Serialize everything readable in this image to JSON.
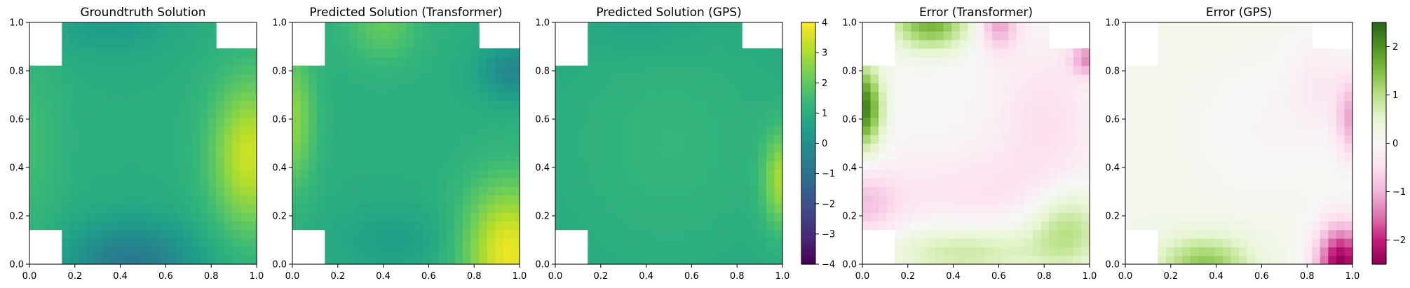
{
  "chart_data": [
    {
      "type": "heatmap",
      "title": "Groundtruth Solution",
      "xlabel": "",
      "ylabel": "",
      "xlim": [
        0.0,
        1.0
      ],
      "ylim": [
        0.0,
        1.0
      ],
      "xticks": [
        "0.0",
        "0.2",
        "0.4",
        "0.6",
        "0.8",
        "1.0"
      ],
      "yticks": [
        "0.0",
        "0.2",
        "0.4",
        "0.6",
        "0.8",
        "1.0"
      ],
      "colormap": "viridis",
      "clim": [
        -4,
        4
      ],
      "field": {
        "base": 1.0,
        "bumps": [
          {
            "x": 0.97,
            "y": 0.45,
            "amp": 2.4,
            "sx": 0.12,
            "sy": 0.22
          },
          {
            "x": 0.45,
            "y": 0.0,
            "amp": -1.8,
            "sx": 0.2,
            "sy": 0.12
          },
          {
            "x": 0.35,
            "y": 1.0,
            "amp": -0.6,
            "sx": 0.2,
            "sy": 0.1
          },
          {
            "x": 0.0,
            "y": 0.5,
            "amp": 0.5,
            "sx": 0.1,
            "sy": 0.3
          }
        ]
      },
      "holes": [
        {
          "x0": 0.0,
          "x1": 0.16,
          "y0": 0.82,
          "y1": 1.0
        },
        {
          "x0": 0.81,
          "x1": 1.0,
          "y0": 0.88,
          "y1": 1.0
        },
        {
          "x0": 0.0,
          "x1": 0.16,
          "y0": 0.0,
          "y1": 0.16
        }
      ]
    },
    {
      "type": "heatmap",
      "title": "Predicted Solution (Transformer)",
      "xlabel": "",
      "ylabel": "",
      "xlim": [
        0.0,
        1.0
      ],
      "ylim": [
        0.0,
        1.0
      ],
      "xticks": [
        "0.0",
        "0.2",
        "0.4",
        "0.6",
        "0.8",
        "1.0"
      ],
      "yticks": [
        "0.0",
        "0.2",
        "0.4",
        "0.6",
        "0.8",
        "1.0"
      ],
      "colormap": "viridis",
      "clim": [
        -4,
        4
      ],
      "field": {
        "base": 1.0,
        "bumps": [
          {
            "x": 0.95,
            "y": 0.05,
            "amp": 2.8,
            "sx": 0.14,
            "sy": 0.2
          },
          {
            "x": 0.0,
            "y": 0.6,
            "amp": 1.6,
            "sx": 0.07,
            "sy": 0.2
          },
          {
            "x": 0.4,
            "y": 1.0,
            "amp": 1.0,
            "sx": 0.12,
            "sy": 0.12
          },
          {
            "x": 0.97,
            "y": 0.8,
            "amp": -1.3,
            "sx": 0.1,
            "sy": 0.08
          },
          {
            "x": 0.45,
            "y": 0.1,
            "amp": -0.5,
            "sx": 0.2,
            "sy": 0.1
          }
        ]
      },
      "holes": [
        {
          "x0": 0.0,
          "x1": 0.16,
          "y0": 0.82,
          "y1": 1.0
        },
        {
          "x0": 0.81,
          "x1": 1.0,
          "y0": 0.88,
          "y1": 1.0
        },
        {
          "x0": 0.0,
          "x1": 0.16,
          "y0": 0.0,
          "y1": 0.16
        }
      ]
    },
    {
      "type": "heatmap",
      "title": "Predicted Solution (GPS)",
      "xlabel": "",
      "ylabel": "",
      "xlim": [
        0.0,
        1.0
      ],
      "ylim": [
        0.0,
        1.0
      ],
      "xticks": [
        "0.0",
        "0.2",
        "0.4",
        "0.6",
        "0.8",
        "1.0"
      ],
      "yticks": [
        "0.0",
        "0.2",
        "0.4",
        "0.6",
        "0.8",
        "1.0"
      ],
      "colormap": "viridis",
      "clim": [
        -4,
        4
      ],
      "field": {
        "base": 0.85,
        "bumps": [
          {
            "x": 1.0,
            "y": 0.35,
            "amp": 2.0,
            "sx": 0.06,
            "sy": 0.14
          },
          {
            "x": 0.5,
            "y": 0.5,
            "amp": 0.4,
            "sx": 0.35,
            "sy": 0.35
          },
          {
            "x": 0.4,
            "y": 1.0,
            "amp": -0.3,
            "sx": 0.2,
            "sy": 0.1
          }
        ]
      },
      "holes": [
        {
          "x0": 0.0,
          "x1": 0.16,
          "y0": 0.82,
          "y1": 1.0
        },
        {
          "x0": 0.81,
          "x1": 1.0,
          "y0": 0.88,
          "y1": 1.0
        },
        {
          "x0": 0.0,
          "x1": 0.16,
          "y0": 0.0,
          "y1": 0.16
        }
      ]
    },
    {
      "type": "heatmap",
      "title": "Error (Transformer)",
      "xlabel": "",
      "ylabel": "",
      "xlim": [
        0.0,
        1.0
      ],
      "ylim": [
        0.0,
        1.0
      ],
      "xticks": [
        "0.0",
        "0.2",
        "0.4",
        "0.6",
        "0.8",
        "1.0"
      ],
      "yticks": [
        "0.0",
        "0.2",
        "0.4",
        "0.6",
        "0.8",
        "1.0"
      ],
      "colormap": "PiYG",
      "clim": [
        -2.5,
        2.5
      ],
      "field": {
        "base": 0.0,
        "bumps": [
          {
            "x": 0.0,
            "y": 0.65,
            "amp": 2.2,
            "sx": 0.06,
            "sy": 0.12
          },
          {
            "x": 0.3,
            "y": 1.0,
            "amp": 1.6,
            "sx": 0.12,
            "sy": 0.08
          },
          {
            "x": 0.6,
            "y": 1.0,
            "amp": -1.2,
            "sx": 0.06,
            "sy": 0.08
          },
          {
            "x": 1.0,
            "y": 0.85,
            "amp": -1.3,
            "sx": 0.06,
            "sy": 0.05
          },
          {
            "x": 0.0,
            "y": 0.25,
            "amp": -0.8,
            "sx": 0.12,
            "sy": 0.1
          },
          {
            "x": 0.5,
            "y": 0.3,
            "amp": -0.4,
            "sx": 0.3,
            "sy": 0.12
          },
          {
            "x": 0.9,
            "y": 0.15,
            "amp": 1.0,
            "sx": 0.12,
            "sy": 0.12
          },
          {
            "x": 0.45,
            "y": 0.05,
            "amp": 0.8,
            "sx": 0.25,
            "sy": 0.08
          },
          {
            "x": 0.8,
            "y": 0.6,
            "amp": -0.5,
            "sx": 0.15,
            "sy": 0.2
          }
        ]
      },
      "holes": [
        {
          "x0": 0.0,
          "x1": 0.16,
          "y0": 0.82,
          "y1": 1.0
        },
        {
          "x0": 0.81,
          "x1": 1.0,
          "y0": 0.88,
          "y1": 1.0
        },
        {
          "x0": 0.0,
          "x1": 0.16,
          "y0": 0.0,
          "y1": 0.16
        }
      ]
    },
    {
      "type": "heatmap",
      "title": "Error (GPS)",
      "xlabel": "",
      "ylabel": "",
      "xlim": [
        0.0,
        1.0
      ],
      "ylim": [
        0.0,
        1.0
      ],
      "xticks": [
        "0.0",
        "0.2",
        "0.4",
        "0.6",
        "0.8",
        "1.0"
      ],
      "yticks": [
        "0.0",
        "0.2",
        "0.4",
        "0.6",
        "0.8",
        "1.0"
      ],
      "colormap": "PiYG",
      "clim": [
        -2.5,
        2.5
      ],
      "field": {
        "base": 0.15,
        "bumps": [
          {
            "x": 0.95,
            "y": 0.0,
            "amp": -2.6,
            "sx": 0.08,
            "sy": 0.12
          },
          {
            "x": 1.0,
            "y": 0.6,
            "amp": -1.2,
            "sx": 0.05,
            "sy": 0.12
          },
          {
            "x": 0.35,
            "y": 0.0,
            "amp": 1.2,
            "sx": 0.14,
            "sy": 0.08
          },
          {
            "x": 0.85,
            "y": 0.75,
            "amp": -0.4,
            "sx": 0.1,
            "sy": 0.15
          },
          {
            "x": 0.6,
            "y": 0.55,
            "amp": -0.2,
            "sx": 0.2,
            "sy": 0.2
          }
        ]
      },
      "holes": [
        {
          "x0": 0.0,
          "x1": 0.16,
          "y0": 0.82,
          "y1": 1.0
        },
        {
          "x0": 0.81,
          "x1": 1.0,
          "y0": 0.88,
          "y1": 1.0
        },
        {
          "x0": 0.0,
          "x1": 0.16,
          "y0": 0.0,
          "y1": 0.16
        }
      ]
    }
  ],
  "colorbars": [
    {
      "colormap": "viridis",
      "clim": [
        -4,
        4
      ],
      "ticks": [
        4,
        3,
        2,
        1,
        0,
        -1,
        -2,
        -3,
        -4
      ],
      "tick_labels": [
        "4",
        "3",
        "2",
        "1",
        "0",
        "−1",
        "−2",
        "−3",
        "−4"
      ]
    },
    {
      "colormap": "PiYG",
      "clim": [
        -2.5,
        2.5
      ],
      "ticks": [
        2,
        1,
        0,
        -1,
        -2
      ],
      "tick_labels": [
        "2",
        "1",
        "0",
        "−1",
        "−2"
      ]
    }
  ]
}
